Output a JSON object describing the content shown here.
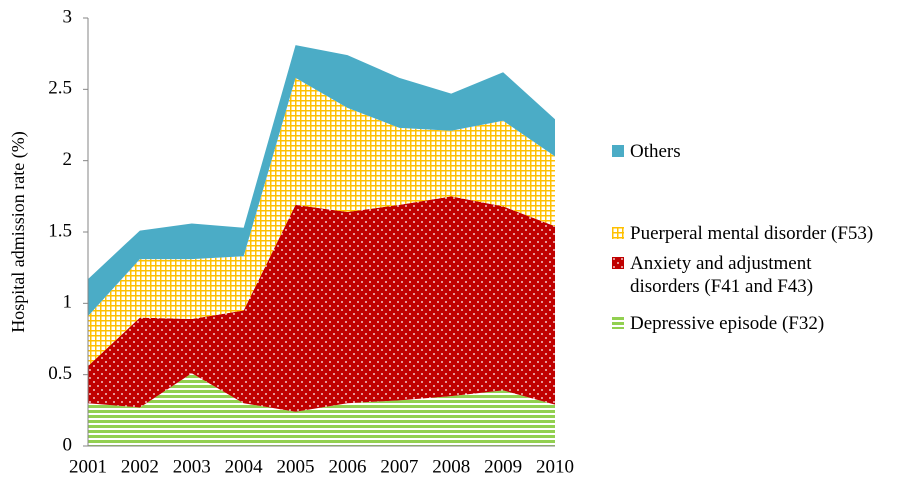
{
  "chart_data": {
    "type": "stacked-area",
    "y_label": "Hospital admission rate (%)",
    "categories": [
      "2001",
      "2002",
      "2003",
      "2004",
      "2005",
      "2006",
      "2007",
      "2008",
      "2009",
      "2010"
    ],
    "series": [
      {
        "name": "Depressive episode (F32)",
        "color": "#92d050",
        "pattern": "horizontal-lines",
        "values": [
          0.3,
          0.27,
          0.51,
          0.3,
          0.24,
          0.3,
          0.32,
          0.35,
          0.39,
          0.29
        ]
      },
      {
        "name": "Anxiety and adjustment disorders (F41 and F43)",
        "color": "#c00000",
        "pattern": "dots",
        "values": [
          0.26,
          0.63,
          0.38,
          0.65,
          1.45,
          1.34,
          1.37,
          1.4,
          1.29,
          1.25
        ]
      },
      {
        "name": "Puerperal mental disorder (F53)",
        "color": "#ffc000",
        "pattern": "grid",
        "values": [
          0.35,
          0.41,
          0.42,
          0.38,
          0.89,
          0.73,
          0.54,
          0.46,
          0.6,
          0.49
        ]
      },
      {
        "name": "Others",
        "color": "#4bacc6",
        "pattern": "solid",
        "values": [
          0.26,
          0.2,
          0.25,
          0.2,
          0.23,
          0.37,
          0.35,
          0.26,
          0.34,
          0.26
        ]
      }
    ],
    "ylim": [
      0,
      3
    ],
    "yticks": [
      0,
      0.5,
      1,
      1.5,
      2,
      2.5,
      3
    ],
    "grid": false,
    "legend": "right"
  }
}
